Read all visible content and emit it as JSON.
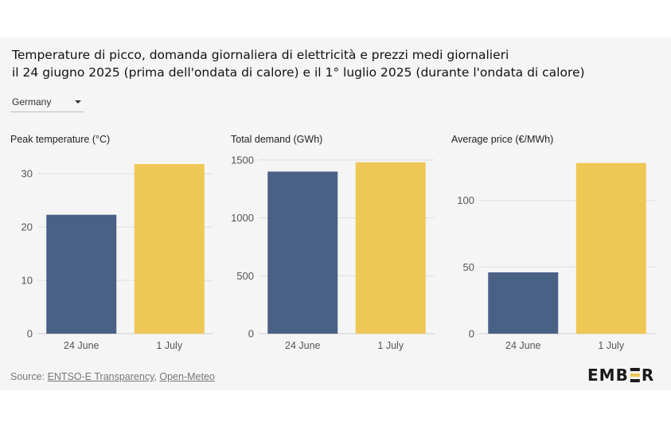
{
  "title_lines": [
    "Temperature di picco, domanda giornaliera di elettricità e prezzi medi giornalieri",
    "il 24 giugno 2025 (prima dell'ondata di calore) e il 1° luglio 2025 (durante l'ondata di calore)"
  ],
  "selector": {
    "value": "Germany"
  },
  "colors": {
    "before": "#4a6186",
    "during": "#efc754",
    "grid": "#dedede",
    "background": "#f5f5f5"
  },
  "chart_data": [
    {
      "type": "bar",
      "title": "Peak temperature (°C)",
      "categories": [
        "24 June",
        "1 July"
      ],
      "values": [
        22.3,
        31.8
      ],
      "ylim": [
        0,
        33
      ],
      "yticks": [
        0,
        10,
        20,
        30
      ],
      "grid": true
    },
    {
      "type": "bar",
      "title": "Total demand (GWh)",
      "categories": [
        "24 June",
        "1 July"
      ],
      "values": [
        1400,
        1480
      ],
      "ylim": [
        0,
        1520
      ],
      "yticks": [
        0,
        500,
        1000,
        1500
      ],
      "grid": true
    },
    {
      "type": "bar",
      "title": "Average price (€/MWh)",
      "categories": [
        "24 June",
        "1 July"
      ],
      "values": [
        46,
        128
      ],
      "ylim": [
        0,
        132
      ],
      "yticks": [
        0,
        50,
        100
      ],
      "grid": true
    }
  ],
  "source": {
    "prefix": "Source: ",
    "link1": "ENTSO-E Transparency",
    "separator": ", ",
    "link2": "Open-Meteo"
  },
  "logo": "EMBER"
}
